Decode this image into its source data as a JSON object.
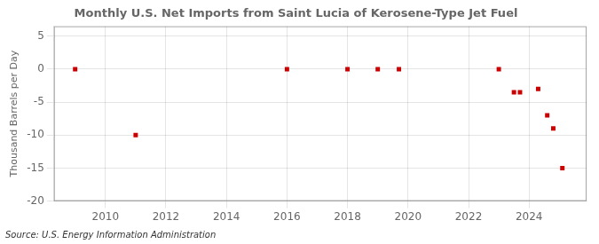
{
  "chart_data": {
    "type": "scatter",
    "title": "Monthly U.S. Net Imports from Saint Lucia of Kerosene-Type Jet Fuel",
    "y_label": "Thousand Barrels per Day",
    "annotations": [
      "Source: U.S. Energy Information Administration"
    ],
    "x": [
      2009.0,
      2011.0,
      2016.0,
      2018.0,
      2019.0,
      2019.7,
      2023.0,
      2023.5,
      2023.7,
      2024.3,
      2024.6,
      2024.8,
      2025.1
    ],
    "values": [
      0,
      -10,
      0,
      0,
      0,
      0,
      0,
      -3.5,
      -3.5,
      -3,
      -7,
      -9,
      -15
    ],
    "color": "#cc0000",
    "marker": "square",
    "xlim": [
      2008.3,
      2025.9
    ],
    "xticks": [
      2010,
      2012,
      2014,
      2016,
      2018,
      2020,
      2022,
      2024
    ],
    "ylim": [
      -20,
      6.5
    ],
    "yticks": [
      -20,
      -15,
      -10,
      -5,
      0,
      5
    ],
    "grid": true
  }
}
